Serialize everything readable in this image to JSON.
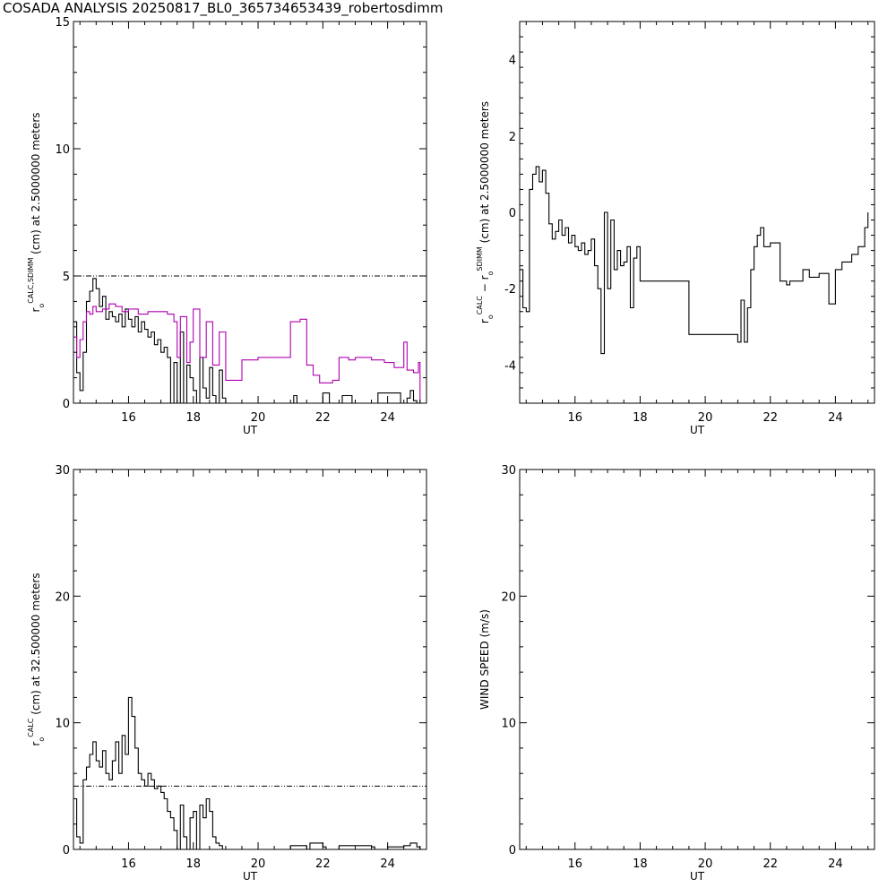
{
  "title": "COSADA ANALYSIS 20250817_BL0_365734653439_robertosdimm",
  "colors": {
    "frame": "#000000",
    "calc": "#000000",
    "sdimm": "#b000b0"
  },
  "chart_data": [
    {
      "id": "p1",
      "type": "line",
      "xlabel": "UT",
      "xlim": [
        14.3,
        25.2
      ],
      "xticks": [
        16,
        18,
        20,
        22,
        24
      ],
      "ylabel": {
        "base": "r",
        "sub": "o",
        "sup": "CALC,SDIMM",
        "text": " (cm)  at  2.5000000 meters"
      },
      "ylim": [
        0,
        15
      ],
      "yticks": [
        0,
        5,
        10,
        15
      ],
      "ref_line": 5,
      "series": [
        {
          "color": "#000000",
          "step": true,
          "x": [
            14.3,
            14.4,
            14.5,
            14.6,
            14.7,
            14.8,
            14.9,
            15.0,
            15.1,
            15.2,
            15.3,
            15.4,
            15.5,
            15.6,
            15.7,
            15.8,
            15.9,
            16.0,
            16.1,
            16.2,
            16.3,
            16.4,
            16.5,
            16.6,
            16.7,
            16.8,
            16.9,
            17.0,
            17.1,
            17.2,
            17.3,
            17.4,
            17.5,
            17.6,
            17.7,
            17.8,
            17.9,
            18.0,
            18.1,
            18.2,
            18.3,
            18.4,
            18.5,
            18.6,
            18.7,
            18.8,
            18.9,
            19.0,
            19.1,
            21.0,
            21.1,
            21.2,
            21.9,
            22.0,
            22.2,
            22.5,
            22.6,
            22.9,
            23.0,
            23.6,
            23.7,
            24.4,
            24.5,
            24.6,
            24.7,
            24.8,
            24.9,
            25.0
          ],
          "y": [
            3.2,
            1.2,
            0.5,
            2.0,
            4.0,
            4.4,
            4.9,
            4.5,
            3.8,
            4.2,
            3.3,
            3.6,
            3.4,
            3.2,
            3.5,
            3.0,
            3.7,
            3.3,
            3.0,
            3.4,
            2.8,
            3.2,
            2.9,
            2.6,
            2.8,
            2.3,
            2.5,
            2.0,
            2.2,
            1.8,
            0,
            1.6,
            0,
            2.8,
            0,
            1.5,
            1.0,
            0.5,
            0,
            1.8,
            0.6,
            0.2,
            1.4,
            0.3,
            0,
            1.3,
            0.2,
            0,
            0,
            0,
            0.3,
            0,
            0,
            0.4,
            0,
            0,
            0.3,
            0,
            0,
            0,
            0.4,
            0,
            0,
            0.2,
            0.5,
            0.1,
            0,
            0
          ]
        },
        {
          "color": "#b000b0",
          "step": true,
          "x": [
            14.3,
            14.4,
            14.5,
            14.6,
            14.7,
            14.8,
            14.9,
            15.0,
            15.2,
            15.4,
            15.6,
            15.8,
            16.0,
            16.3,
            16.6,
            16.9,
            17.2,
            17.4,
            17.5,
            17.6,
            17.8,
            17.9,
            18.0,
            18.2,
            18.4,
            18.6,
            18.8,
            19.0,
            19.5,
            20.0,
            21.0,
            21.3,
            21.5,
            21.7,
            21.9,
            22.3,
            22.5,
            22.8,
            23.0,
            23.5,
            23.9,
            24.2,
            24.5,
            24.6,
            24.8,
            24.95,
            25.0
          ],
          "y": [
            2.6,
            1.8,
            2.5,
            3.2,
            3.6,
            3.5,
            3.8,
            3.6,
            3.7,
            3.9,
            3.8,
            3.6,
            3.7,
            3.5,
            3.6,
            3.6,
            3.5,
            3.2,
            1.8,
            3.4,
            1.6,
            2.4,
            3.7,
            1.8,
            3.2,
            1.5,
            2.8,
            0.9,
            1.7,
            1.8,
            3.2,
            3.3,
            1.5,
            1.1,
            0.8,
            0.9,
            1.8,
            1.7,
            1.8,
            1.7,
            1.6,
            1.4,
            2.4,
            1.3,
            1.2,
            1.6,
            0
          ]
        }
      ]
    },
    {
      "id": "p2",
      "type": "line",
      "xlabel": "UT",
      "xlim": [
        14.3,
        25.2
      ],
      "xticks": [
        16,
        18,
        20,
        22,
        24
      ],
      "ylabel": {
        "base": "r",
        "sub": "o",
        "sup": "CALC",
        "mid": "  −  r",
        "sub2": "o",
        "sup2": "SDIMM",
        "text": " (cm)  at  2.5000000 meters"
      },
      "ylim": [
        -5,
        5
      ],
      "yticks": [
        -4,
        -2,
        0,
        2,
        4
      ],
      "series": [
        {
          "color": "#000000",
          "step": true,
          "x": [
            14.3,
            14.4,
            14.5,
            14.6,
            14.7,
            14.8,
            14.9,
            15.0,
            15.1,
            15.2,
            15.3,
            15.4,
            15.5,
            15.6,
            15.7,
            15.8,
            15.9,
            16.0,
            16.1,
            16.2,
            16.3,
            16.4,
            16.5,
            16.6,
            16.7,
            16.8,
            16.9,
            17.0,
            17.1,
            17.2,
            17.3,
            17.4,
            17.5,
            17.6,
            17.7,
            17.8,
            17.9,
            18.0,
            18.1,
            18.2,
            18.3,
            18.4,
            18.5,
            18.6,
            18.7,
            18.8,
            18.9,
            19.0,
            19.5,
            20.0,
            21.0,
            21.1,
            21.2,
            21.3,
            21.4,
            21.5,
            21.6,
            21.7,
            21.8,
            21.9,
            22.0,
            22.3,
            22.5,
            22.6,
            22.9,
            23.0,
            23.2,
            23.5,
            23.8,
            24.0,
            24.2,
            24.5,
            24.7,
            24.9,
            25.0
          ],
          "y": [
            -1.5,
            -2.5,
            -2.6,
            0.6,
            1.0,
            1.2,
            0.8,
            1.1,
            0.5,
            -0.3,
            -0.7,
            -0.5,
            -0.2,
            -0.6,
            -0.4,
            -0.8,
            -0.6,
            -0.9,
            -1.0,
            -0.8,
            -1.1,
            -1.0,
            -0.7,
            -1.4,
            -2.0,
            -3.7,
            0.0,
            -2.0,
            -0.2,
            -1.5,
            -1.0,
            -1.4,
            -1.3,
            -0.9,
            -2.5,
            -1.2,
            -0.9,
            -1.8,
            -1.8,
            -1.8,
            -1.8,
            -1.8,
            -1.8,
            -1.8,
            -1.8,
            -1.8,
            -1.8,
            -1.8,
            -3.2,
            -3.2,
            -3.4,
            -2.3,
            -3.4,
            -2.5,
            -1.5,
            -0.9,
            -0.6,
            -0.4,
            -0.9,
            -0.9,
            -0.8,
            -1.8,
            -1.9,
            -1.8,
            -1.8,
            -1.5,
            -1.7,
            -1.6,
            -2.4,
            -1.5,
            -1.3,
            -1.1,
            -0.9,
            -0.4,
            0
          ]
        }
      ]
    },
    {
      "id": "p3",
      "type": "line",
      "xlabel": "UT",
      "xlim": [
        14.3,
        25.2
      ],
      "xticks": [
        16,
        18,
        20,
        22,
        24
      ],
      "ylabel": {
        "base": "r",
        "sub": "o",
        "sup": "CALC",
        "text": " (cm)  at  32.500000 meters"
      },
      "ylim": [
        0,
        30
      ],
      "yticks": [
        0,
        10,
        20,
        30
      ],
      "ref_line": 5,
      "series": [
        {
          "color": "#000000",
          "step": true,
          "x": [
            14.3,
            14.4,
            14.5,
            14.6,
            14.7,
            14.8,
            14.9,
            15.0,
            15.1,
            15.2,
            15.3,
            15.4,
            15.5,
            15.6,
            15.7,
            15.8,
            15.9,
            16.0,
            16.1,
            16.2,
            16.3,
            16.4,
            16.5,
            16.6,
            16.7,
            16.8,
            16.9,
            17.0,
            17.1,
            17.2,
            17.3,
            17.4,
            17.5,
            17.6,
            17.7,
            17.8,
            17.9,
            18.0,
            18.1,
            18.2,
            18.3,
            18.4,
            18.5,
            18.6,
            18.7,
            18.8,
            18.9,
            19.0,
            21.0,
            21.5,
            21.6,
            22.0,
            22.1,
            22.5,
            23.5,
            23.6,
            24.0,
            24.5,
            24.7,
            24.9,
            25.0
          ],
          "y": [
            4.0,
            1.0,
            0.5,
            5.5,
            6.5,
            7.5,
            8.5,
            7.0,
            6.5,
            7.8,
            6.0,
            5.5,
            7.0,
            8.5,
            6.0,
            9.0,
            7.5,
            12.0,
            10.5,
            8.0,
            6.0,
            5.5,
            5.0,
            6.0,
            5.5,
            4.8,
            5.0,
            4.5,
            4.0,
            3.0,
            2.5,
            1.5,
            0,
            3.5,
            1.0,
            0,
            2.5,
            3.0,
            0,
            3.5,
            2.5,
            4.0,
            3.0,
            1.0,
            0.5,
            0.3,
            0,
            0,
            0.3,
            0,
            0.5,
            0.2,
            0,
            0.3,
            0.2,
            0,
            0.2,
            0.3,
            0.5,
            0.2,
            0
          ]
        }
      ]
    },
    {
      "id": "p4",
      "type": "line",
      "xlabel": "UT",
      "xlim": [
        14.3,
        25.2
      ],
      "xticks": [
        16,
        18,
        20,
        22,
        24
      ],
      "ylabel": {
        "text": "WIND SPEED (m/s)"
      },
      "ylim": [
        0,
        30
      ],
      "yticks": [
        0,
        10,
        20,
        30
      ],
      "series": []
    }
  ]
}
